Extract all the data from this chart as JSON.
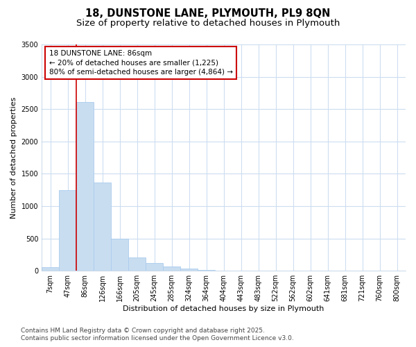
{
  "title_line1": "18, DUNSTONE LANE, PLYMOUTH, PL9 8QN",
  "title_line2": "Size of property relative to detached houses in Plymouth",
  "xlabel": "Distribution of detached houses by size in Plymouth",
  "ylabel": "Number of detached properties",
  "categories": [
    "7sqm",
    "47sqm",
    "86sqm",
    "126sqm",
    "166sqm",
    "205sqm",
    "245sqm",
    "285sqm",
    "324sqm",
    "364sqm",
    "404sqm",
    "443sqm",
    "483sqm",
    "522sqm",
    "562sqm",
    "602sqm",
    "641sqm",
    "681sqm",
    "721sqm",
    "760sqm",
    "800sqm"
  ],
  "values": [
    50,
    1250,
    2610,
    1360,
    495,
    210,
    115,
    65,
    28,
    12,
    4,
    2,
    1,
    0,
    0,
    0,
    0,
    0,
    0,
    0,
    0
  ],
  "bar_color": "#c8ddf0",
  "bar_edge_color": "#aaccee",
  "highlight_index": 2,
  "highlight_line_color": "#cc0000",
  "annotation_text": "18 DUNSTONE LANE: 86sqm\n← 20% of detached houses are smaller (1,225)\n80% of semi-detached houses are larger (4,864) →",
  "annotation_box_color": "#ffffff",
  "annotation_box_edge_color": "#cc0000",
  "ylim": [
    0,
    3500
  ],
  "yticks": [
    0,
    500,
    1000,
    1500,
    2000,
    2500,
    3000,
    3500
  ],
  "grid_color": "#ccddf0",
  "background_color": "#ffffff",
  "footnote": "Contains HM Land Registry data © Crown copyright and database right 2025.\nContains public sector information licensed under the Open Government Licence v3.0.",
  "title_fontsize": 10.5,
  "subtitle_fontsize": 9.5,
  "axis_label_fontsize": 8,
  "tick_fontsize": 7,
  "annot_fontsize": 7.5,
  "footnote_fontsize": 6.5
}
